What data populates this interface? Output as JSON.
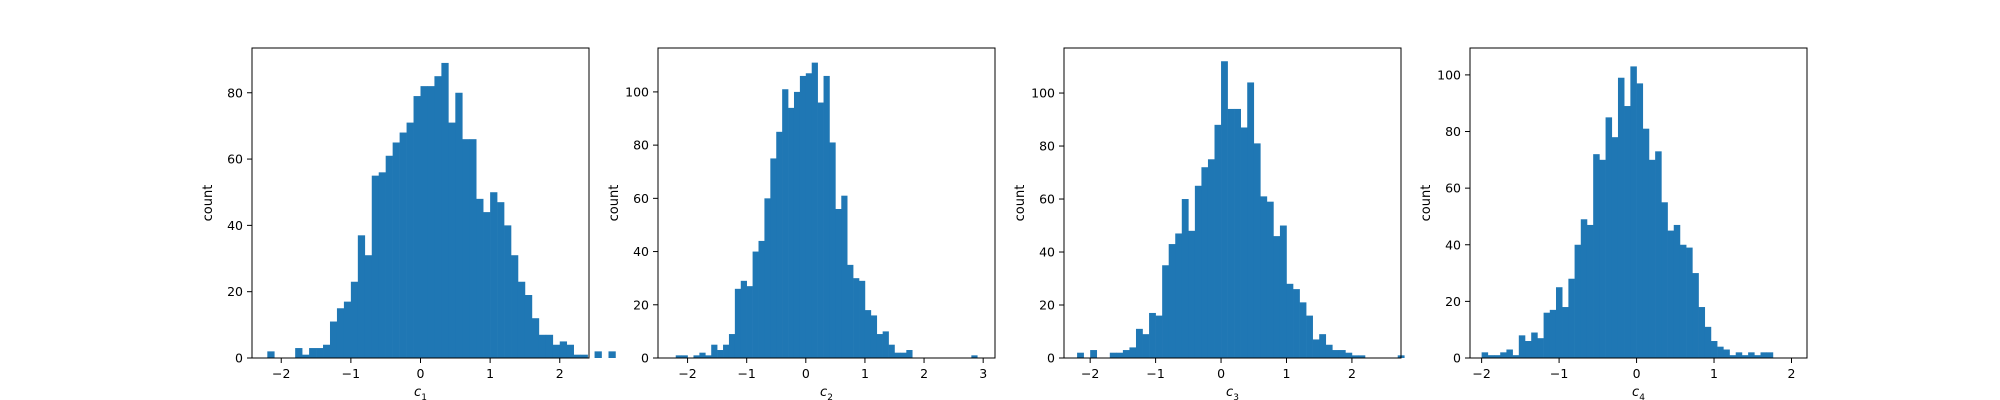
{
  "chart_data": [
    {
      "type": "bar",
      "ylabel": "count",
      "xlabel_base": "c",
      "xlabel_sub": "1",
      "xlim": [
        -2.42,
        2.42
      ],
      "ylim": [
        0,
        93.5
      ],
      "xticks": [
        -2,
        -1,
        0,
        1,
        2
      ],
      "yticks": [
        0,
        20,
        40,
        60,
        80
      ],
      "bins": {
        "start": -2.3,
        "width": 0.1,
        "counts": [
          0,
          2,
          0,
          0,
          0,
          3,
          1,
          3,
          3,
          4,
          11,
          15,
          17,
          23,
          37,
          31,
          55,
          56,
          61,
          65,
          68,
          71,
          79,
          82,
          82,
          85,
          89,
          71,
          80,
          66,
          66,
          48,
          44,
          50,
          47,
          40,
          31,
          23,
          19,
          12,
          7,
          7,
          4,
          5,
          4,
          1,
          1,
          0,
          2,
          0,
          2
        ]
      }
    },
    {
      "type": "bar",
      "ylabel": "count",
      "xlabel_base": "c",
      "xlabel_sub": "2",
      "xlim": [
        -2.5,
        3.2
      ],
      "ylim": [
        0,
        116.5
      ],
      "xticks": [
        -2,
        -1,
        0,
        1,
        2,
        3
      ],
      "yticks": [
        0,
        20,
        40,
        60,
        80,
        100
      ],
      "bins": {
        "start": -2.2,
        "width": 0.1,
        "counts": [
          1,
          1,
          0,
          1,
          2,
          1,
          5,
          3,
          5,
          9,
          26,
          29,
          27,
          40,
          44,
          60,
          75,
          85,
          101,
          94,
          100,
          106,
          107,
          111,
          96,
          106,
          81,
          56,
          61,
          35,
          30,
          29,
          18,
          16,
          9,
          10,
          5,
          2,
          2,
          3,
          0,
          0,
          0,
          0,
          0,
          0,
          0,
          0,
          0,
          0,
          1
        ]
      }
    },
    {
      "type": "bar",
      "ylabel": "count",
      "xlabel_base": "c",
      "xlabel_sub": "3",
      "xlim": [
        -2.4,
        2.75
      ],
      "ylim": [
        0,
        117
      ],
      "xticks": [
        -2,
        -1,
        0,
        1,
        2
      ],
      "yticks": [
        0,
        20,
        40,
        60,
        80,
        100
      ],
      "bins": {
        "start": -2.2,
        "width": 0.1,
        "counts": [
          2,
          0,
          3,
          0,
          0,
          2,
          2,
          3,
          4,
          11,
          9,
          17,
          16,
          35,
          43,
          47,
          60,
          48,
          65,
          72,
          75,
          88,
          112,
          94,
          94,
          87,
          104,
          81,
          61,
          59,
          46,
          50,
          28,
          26,
          21,
          16,
          7,
          9,
          5,
          3,
          3,
          2,
          1,
          1,
          0,
          0,
          0,
          0,
          0,
          1
        ]
      }
    },
    {
      "type": "bar",
      "ylabel": "count",
      "xlabel_base": "c",
      "xlabel_sub": "4",
      "xlim": [
        -2.15,
        2.2
      ],
      "ylim": [
        0,
        109.5
      ],
      "xticks": [
        -2,
        -1,
        0,
        1,
        2
      ],
      "yticks": [
        0,
        20,
        40,
        60,
        80,
        100
      ],
      "bins": {
        "start": -2.0,
        "width": 0.08,
        "counts": [
          2,
          1,
          1,
          2,
          3,
          1,
          8,
          6,
          9,
          7,
          16,
          17,
          25,
          18,
          28,
          40,
          49,
          47,
          72,
          70,
          85,
          78,
          99,
          89,
          103,
          97,
          81,
          70,
          73,
          55,
          45,
          47,
          40,
          39,
          30,
          18,
          11,
          6,
          4,
          3,
          1,
          2,
          1,
          2,
          1,
          2,
          2
        ]
      }
    }
  ]
}
